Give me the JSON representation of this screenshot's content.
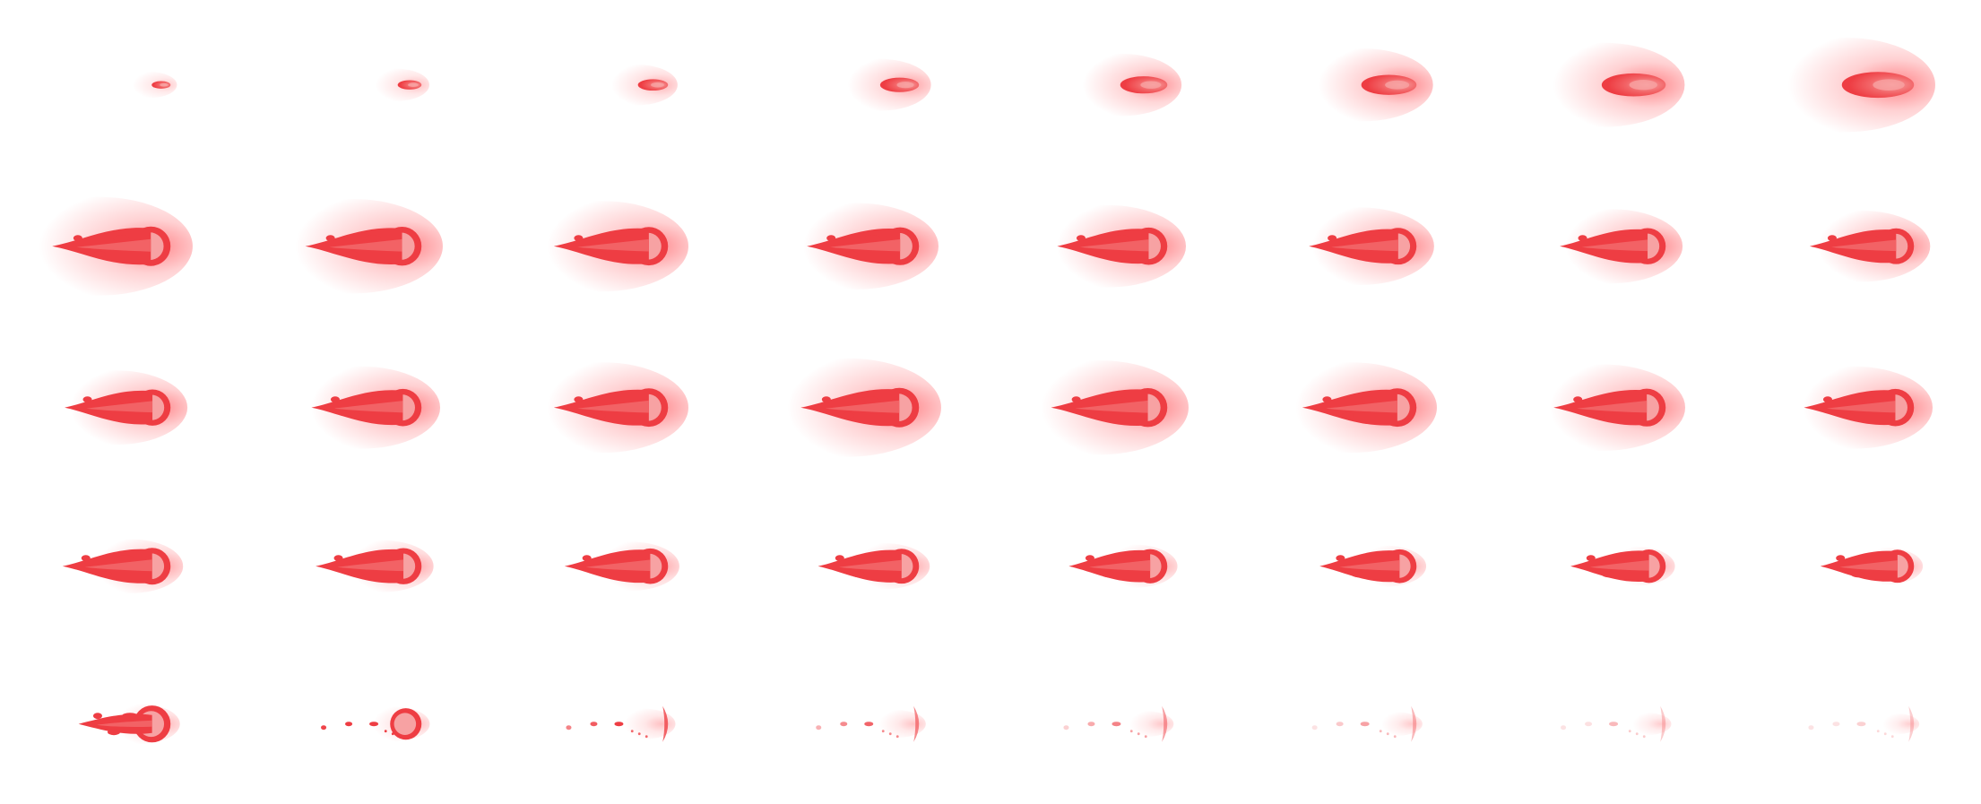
{
  "sprite_sheet": {
    "columns": 8,
    "rows": 5,
    "frame_count": 40,
    "background": "#ffffff",
    "colors": {
      "core": "#ee3d43",
      "bright": "#f7a2a3",
      "mid": "#f26265",
      "glow": "#ff5a60"
    },
    "frame_strength": [
      [
        0.1,
        0.18,
        0.28,
        0.42,
        0.55,
        0.68,
        0.82,
        0.95
      ],
      [
        1.0,
        0.95,
        0.9,
        0.85,
        0.8,
        0.74,
        0.7,
        0.66
      ],
      [
        0.7,
        0.8,
        0.9,
        1.0,
        0.95,
        0.9,
        0.85,
        0.8
      ],
      [
        0.75,
        0.7,
        0.64,
        0.58,
        0.52,
        0.48,
        0.44,
        0.4
      ],
      [
        0.45,
        0.34,
        0.26,
        0.2,
        0.16,
        0.12,
        0.09,
        0.06
      ]
    ]
  }
}
